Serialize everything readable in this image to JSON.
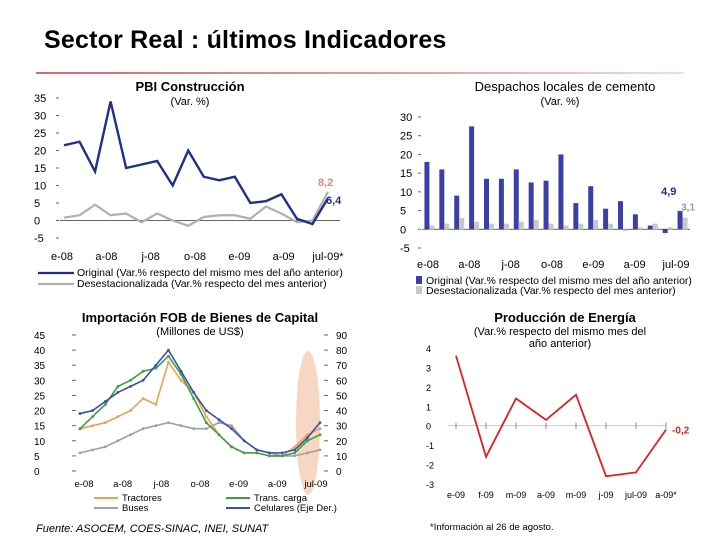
{
  "page": {
    "title": "Sector Real : últimos Indicadores",
    "source": "Fuente: ASOCEM, COES-SINAC, INEI, SUNAT",
    "footnote": "*Información al 26 de agosto."
  },
  "chart_data": [
    {
      "type": "line",
      "title": "PBI Construcción",
      "subtitle": "(Var. %)",
      "ylim": [
        -5,
        35
      ],
      "yticks": [
        -5,
        0,
        5,
        10,
        15,
        20,
        25,
        30,
        35
      ],
      "xticks": [
        "e-08",
        "a-08",
        "j-08",
        "o-08",
        "e-09",
        "a-09",
        "jul-09*"
      ],
      "series": [
        {
          "name": "Original (Var.% respecto del mismo mes del año anterior)",
          "color": "#1f2f8a",
          "values": [
            21.5,
            22.5,
            14,
            34,
            15,
            16,
            17,
            10,
            20,
            12.5,
            11.5,
            12.5,
            5,
            5.5,
            7.5,
            0.5,
            -1,
            6.4
          ]
        },
        {
          "name": "Desestacionalizada (Var.% respecto del mes anterior)",
          "color": "#b0b0b0",
          "values": [
            0.8,
            1.5,
            4.5,
            1.5,
            2,
            -0.5,
            2,
            0,
            -1.5,
            1,
            1.5,
            1.5,
            0.5,
            4,
            2,
            -0.5,
            0,
            8.2
          ]
        }
      ],
      "annotations": [
        {
          "text": "8,2",
          "color": "#f08080"
        },
        {
          "text": "6,4",
          "color": "#1f2f8a"
        }
      ]
    },
    {
      "type": "bar",
      "title": "Despachos locales de cemento",
      "subtitle": "(Var. %)",
      "ylim": [
        -5,
        30
      ],
      "yticks": [
        -5,
        0,
        5,
        10,
        15,
        20,
        25,
        30
      ],
      "xticks": [
        "e-08",
        "a-08",
        "j-08",
        "o-08",
        "e-09",
        "a-09",
        "jul-09"
      ],
      "series": [
        {
          "name": "Original (Var.% respecto del mismo mes del año anterior)",
          "color": "#3b3fa8",
          "values": [
            18,
            16,
            9,
            27.5,
            13.5,
            13.5,
            16,
            12.5,
            13,
            20,
            7,
            11.5,
            5.5,
            7.5,
            4,
            1,
            -1,
            4.9
          ]
        },
        {
          "name": "Desestacionalizada (Var.% respecto del mes anterior)",
          "color": "#c8c8c8",
          "values": [
            1,
            1.5,
            3,
            2,
            1.5,
            1.5,
            2,
            2.5,
            1.5,
            1,
            1.5,
            2.5,
            1.5,
            -0.5,
            0.5,
            1.5,
            0.5,
            3.1
          ]
        }
      ],
      "annotations": [
        {
          "text": "4,9",
          "color": "#1f2f8a"
        },
        {
          "text": "3,1",
          "color": "#999999"
        }
      ]
    },
    {
      "type": "line",
      "title": "Importación FOB de Bienes de Capital",
      "subtitle": "(Millones de US$)",
      "ylim": [
        0,
        45
      ],
      "y2lim": [
        0,
        90
      ],
      "yticks": [
        0,
        5,
        10,
        15,
        20,
        25,
        30,
        35,
        40,
        45
      ],
      "y2ticks": [
        0,
        10,
        20,
        30,
        40,
        50,
        60,
        70,
        80,
        90
      ],
      "xticks": [
        "e-08",
        "a-08",
        "j-08",
        "o-08",
        "e-09",
        "a-09",
        "jul-09"
      ],
      "series": [
        {
          "name": "Tractores",
          "color": "#f0a050",
          "axis": "left",
          "values": [
            14,
            15,
            16,
            18,
            20,
            24,
            22,
            36,
            30,
            26,
            18,
            12,
            8,
            6,
            6,
            5,
            5,
            8,
            12,
            14
          ]
        },
        {
          "name": "Buses",
          "color": "#a0a0a0",
          "axis": "left",
          "values": [
            6,
            7,
            8,
            10,
            12,
            14,
            15,
            16,
            15,
            14,
            14,
            16,
            15,
            10,
            7,
            6,
            5,
            5,
            6,
            7
          ]
        },
        {
          "name": "Trans. carga",
          "color": "#3aa040",
          "axis": "left",
          "values": [
            14,
            18,
            22,
            28,
            30,
            33,
            34,
            38,
            32,
            24,
            16,
            12,
            8,
            6,
            6,
            5,
            5,
            6,
            10,
            12
          ]
        },
        {
          "name": "Celulares (Eje Der.)",
          "color": "#3a4fb0",
          "axis": "right",
          "values": [
            38,
            40,
            46,
            52,
            56,
            60,
            70,
            80,
            66,
            52,
            40,
            34,
            28,
            20,
            14,
            12,
            12,
            14,
            22,
            32
          ]
        }
      ]
    },
    {
      "type": "line",
      "title": "Producción de Energía",
      "subtitle": "(Var.% respecto del mismo mes del año anterior)",
      "ylim": [
        -3,
        4
      ],
      "yticks": [
        -3,
        -2,
        -1,
        0,
        1,
        2,
        3,
        4
      ],
      "xticks": [
        "e-09",
        "f-09",
        "m-09",
        "a-09",
        "m-09",
        "j-09",
        "jul-09",
        "a-09*"
      ],
      "series": [
        {
          "name": "Producción de Energía",
          "color": "#e02020",
          "values": [
            3.6,
            -1.6,
            1.4,
            0.3,
            1.6,
            -2.6,
            -2.4,
            -0.2
          ]
        }
      ],
      "annotations": [
        {
          "text": "-0,2",
          "color": "#e02020"
        }
      ]
    }
  ]
}
